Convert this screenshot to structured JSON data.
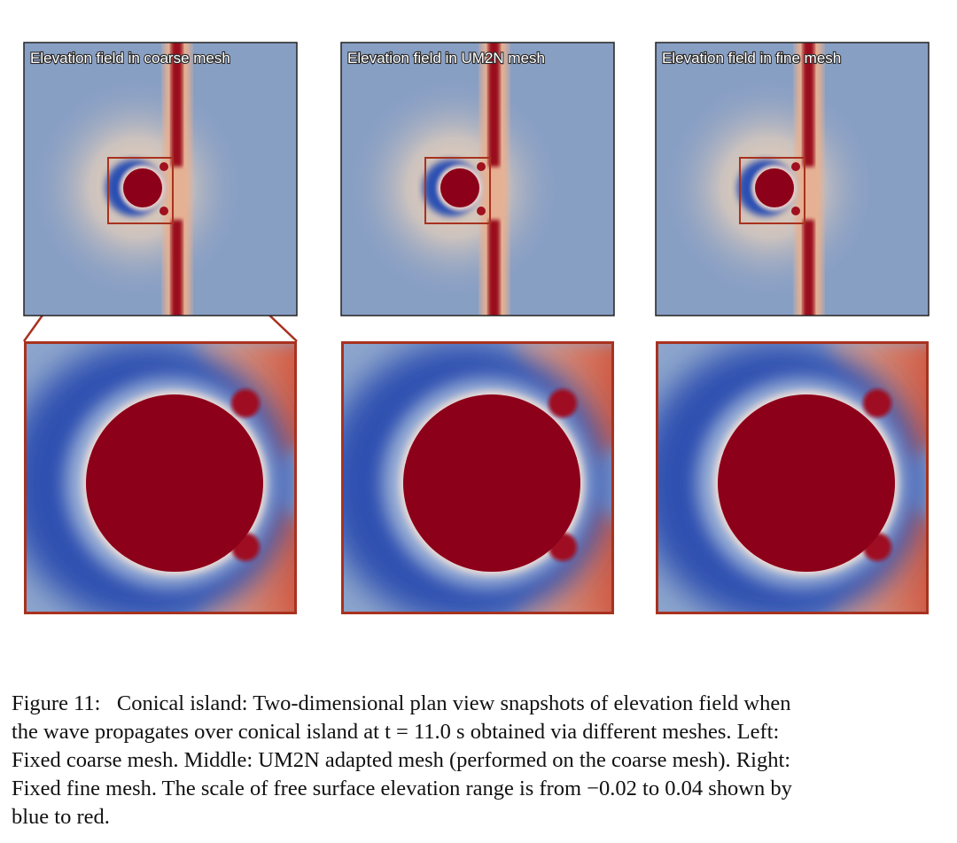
{
  "panels": [
    {
      "title": "Elevation field in coarse mesh"
    },
    {
      "title": "Elevation field in UM2N mesh"
    },
    {
      "title": "Elevation field in fine mesh"
    }
  ],
  "caption": {
    "lines": [
      "Figure 11:   Conical island: Two-dimensional plan view snapshots of elevation field when",
      "the wave propagates over conical island at t = 11.0 s obtained via different meshes. Left:",
      "Fixed coarse mesh. Middle: UM2N adapted mesh (performed on the coarse mesh). Right:",
      "Fixed fine mesh. The scale of free surface elevation range is from −0.02 to 0.04 shown by",
      "blue to red."
    ]
  }
}
